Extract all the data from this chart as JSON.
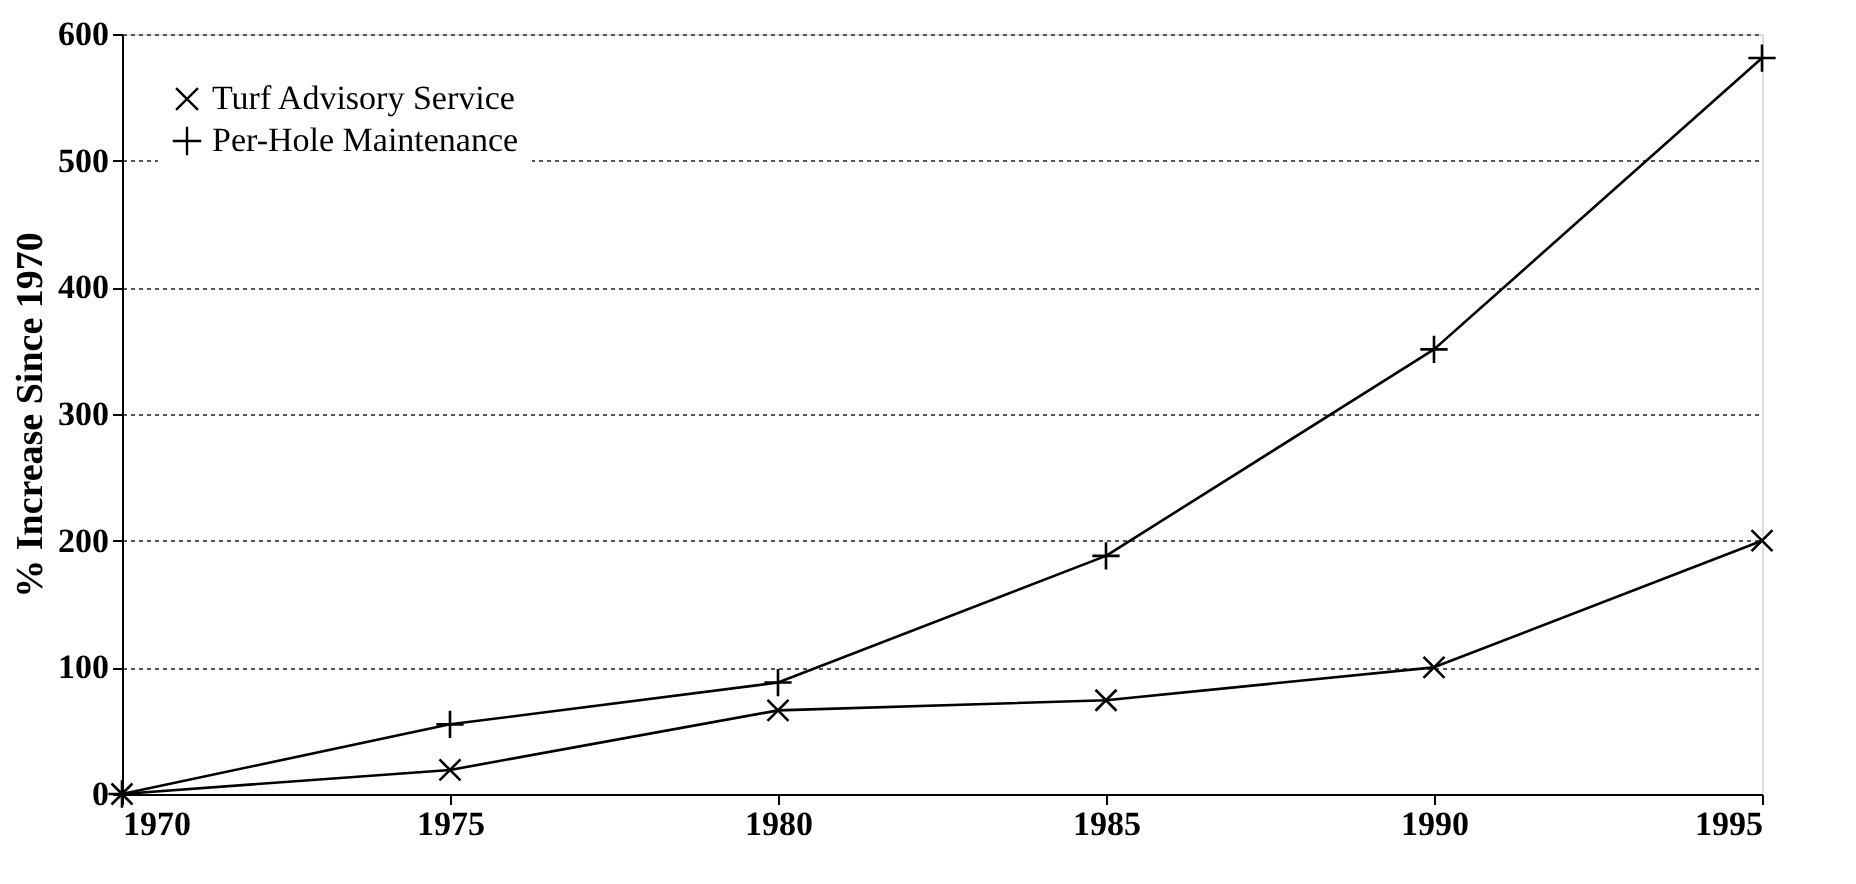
{
  "chart_data": {
    "type": "line",
    "ylabel": "% Increase Since 1970",
    "x": [
      1970,
      1975,
      1980,
      1985,
      1990,
      1995
    ],
    "series": [
      {
        "name": "Turf Advisory Service",
        "color": "#000000",
        "marker": "cross",
        "values": [
          0,
          19,
          66,
          74,
          100,
          200
        ]
      },
      {
        "name": "Per-Hole Maintenance",
        "color": "#000000",
        "marker": "plus",
        "values": [
          0,
          55,
          88,
          188,
          351,
          581
        ]
      }
    ],
    "xlim": [
      1970,
      1995
    ],
    "xticks": [
      1970,
      1975,
      1980,
      1985,
      1990,
      1995
    ],
    "ylim": [
      0,
      600
    ],
    "yticks": [
      0,
      100,
      200,
      300,
      400,
      500,
      600
    ],
    "grid": "y",
    "legend": "top left",
    "line_style": "solid"
  }
}
